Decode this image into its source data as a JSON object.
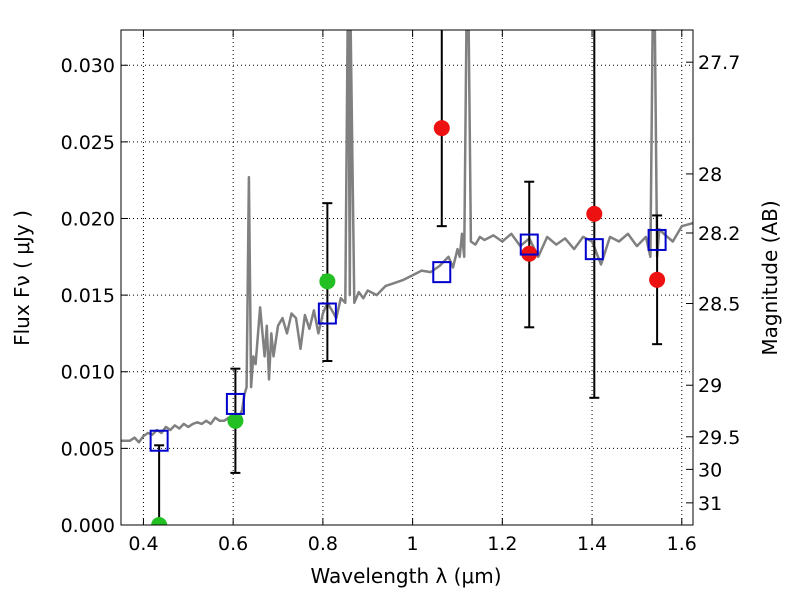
{
  "chart_data": {
    "type": "scatter",
    "xlabel": "Wavelength  λ (μm)",
    "ylabel": "Flux  Fν  ( μJy )",
    "y2label": "Magnitude (AB)",
    "xlim": [
      0.35,
      1.625
    ],
    "ylim": [
      0.0,
      0.0323
    ],
    "grid": true,
    "x_ticks": [
      0.4,
      0.6,
      0.8,
      1.0,
      1.2,
      1.4,
      1.6
    ],
    "x_tick_labels": [
      "0.4",
      "0.6",
      "0.8",
      "1",
      "1.2",
      "1.4",
      "1.6"
    ],
    "y_ticks": [
      0.0,
      0.005,
      0.01,
      0.015,
      0.02,
      0.025,
      0.03
    ],
    "y_tick_labels": [
      "0.000",
      "0.005",
      "0.010",
      "0.015",
      "0.020",
      "0.025",
      "0.030"
    ],
    "y2_ticks": [
      27.7,
      28,
      28.2,
      28.5,
      29,
      29.5,
      30,
      31
    ],
    "y2_tick_labels": [
      "27.7",
      "28",
      "28.2",
      "28.5",
      "29",
      "29.5",
      "30",
      "31"
    ],
    "colors": {
      "spectrum": "#808080",
      "green_points": "#22c022",
      "red_points": "#ee1111",
      "model_squares": "#0000cc",
      "errorbars": "#000000",
      "grid": "#000000"
    },
    "spectrum": {
      "x": [
        0.35,
        0.37,
        0.38,
        0.39,
        0.4,
        0.41,
        0.42,
        0.43,
        0.44,
        0.45,
        0.46,
        0.47,
        0.48,
        0.49,
        0.5,
        0.51,
        0.52,
        0.53,
        0.54,
        0.55,
        0.56,
        0.57,
        0.58,
        0.59,
        0.6,
        0.61,
        0.62,
        0.625,
        0.63,
        0.635,
        0.64,
        0.645,
        0.65,
        0.66,
        0.67,
        0.675,
        0.68,
        0.685,
        0.69,
        0.7,
        0.71,
        0.72,
        0.73,
        0.74,
        0.75,
        0.76,
        0.77,
        0.78,
        0.79,
        0.8,
        0.81,
        0.82,
        0.83,
        0.84,
        0.85,
        0.855,
        0.857,
        0.86,
        0.862,
        0.87,
        0.88,
        0.89,
        0.9,
        0.92,
        0.94,
        0.96,
        0.98,
        1.0,
        1.02,
        1.04,
        1.06,
        1.08,
        1.09,
        1.1,
        1.105,
        1.11,
        1.115,
        1.12,
        1.125,
        1.13,
        1.14,
        1.15,
        1.16,
        1.18,
        1.2,
        1.22,
        1.24,
        1.26,
        1.28,
        1.3,
        1.32,
        1.34,
        1.36,
        1.38,
        1.4,
        1.42,
        1.44,
        1.46,
        1.48,
        1.5,
        1.52,
        1.53,
        1.535,
        1.54,
        1.545,
        1.55,
        1.56,
        1.58,
        1.6,
        1.625
      ],
      "y": [
        0.0055,
        0.0055,
        0.0057,
        0.0054,
        0.0058,
        0.006,
        0.0059,
        0.0062,
        0.006,
        0.0064,
        0.0062,
        0.0065,
        0.0063,
        0.0066,
        0.0064,
        0.0066,
        0.0067,
        0.0066,
        0.0068,
        0.0066,
        0.007,
        0.0068,
        0.0068,
        0.007,
        0.0069,
        0.0068,
        0.0075,
        0.0085,
        0.009,
        0.0227,
        0.009,
        0.011,
        0.0105,
        0.0142,
        0.011,
        0.013,
        0.0095,
        0.0125,
        0.011,
        0.013,
        0.0135,
        0.0125,
        0.0138,
        0.0135,
        0.0115,
        0.0137,
        0.0128,
        0.014,
        0.0125,
        0.0138,
        0.0145,
        0.014,
        0.0135,
        0.0148,
        0.0145,
        0.0323,
        0.0323,
        0.015,
        0.0323,
        0.0145,
        0.0152,
        0.0148,
        0.0153,
        0.015,
        0.0156,
        0.0158,
        0.016,
        0.0163,
        0.0166,
        0.0165,
        0.0169,
        0.0175,
        0.0168,
        0.018,
        0.0175,
        0.019,
        0.0175,
        0.0323,
        0.0323,
        0.0185,
        0.0183,
        0.0188,
        0.0186,
        0.0189,
        0.0185,
        0.019,
        0.0182,
        0.0187,
        0.0175,
        0.0188,
        0.0183,
        0.0187,
        0.018,
        0.0188,
        0.0185,
        0.017,
        0.0188,
        0.0185,
        0.019,
        0.0182,
        0.0188,
        0.0175,
        0.0323,
        0.0323,
        0.0175,
        0.0193,
        0.019,
        0.0185,
        0.0195,
        0.0197
      ]
    },
    "green_points": [
      {
        "x": 0.435,
        "y": 0.0
      },
      {
        "x": 0.605,
        "y": 0.0068
      },
      {
        "x": 0.81,
        "y": 0.0159
      }
    ],
    "red_points": [
      {
        "x": 1.065,
        "y": 0.0259
      },
      {
        "x": 1.26,
        "y": 0.0177
      },
      {
        "x": 1.405,
        "y": 0.0203
      },
      {
        "x": 1.545,
        "y": 0.016
      }
    ],
    "errorbars": [
      {
        "x": 0.435,
        "low": 0.0,
        "high": 0.0052
      },
      {
        "x": 0.605,
        "low": 0.0034,
        "high": 0.0102
      },
      {
        "x": 0.81,
        "low": 0.0107,
        "high": 0.021
      },
      {
        "x": 1.065,
        "low": 0.0195,
        "high": 0.0323
      },
      {
        "x": 1.26,
        "low": 0.0129,
        "high": 0.0224
      },
      {
        "x": 1.405,
        "low": 0.0083,
        "high": 0.0323
      },
      {
        "x": 1.545,
        "low": 0.0118,
        "high": 0.0202
      }
    ],
    "model_squares": [
      {
        "x": 0.435,
        "y": 0.0055
      },
      {
        "x": 0.605,
        "y": 0.0079
      },
      {
        "x": 0.81,
        "y": 0.0138
      },
      {
        "x": 1.065,
        "y": 0.0165
      },
      {
        "x": 1.26,
        "y": 0.0183
      },
      {
        "x": 1.405,
        "y": 0.018
      },
      {
        "x": 1.545,
        "y": 0.0186
      }
    ]
  }
}
